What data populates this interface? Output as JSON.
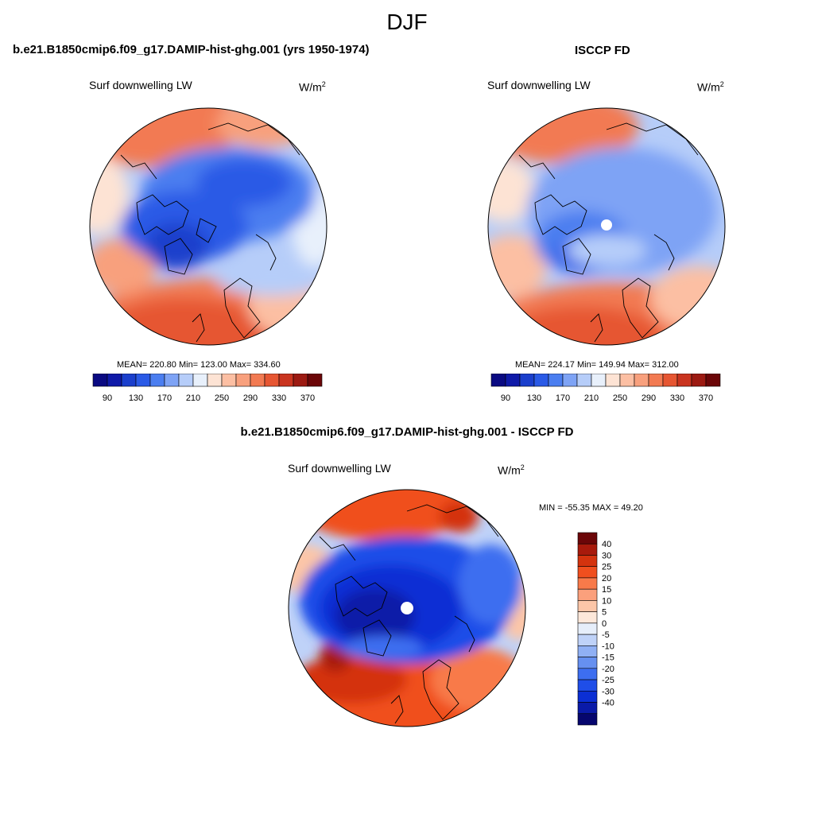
{
  "figure": {
    "title": "DJF"
  },
  "colors": {
    "coast": "#000000",
    "missing": "#ffffff"
  },
  "panels": [
    {
      "id": "model",
      "title": "b.e21.B1850cmip6.f09_g17.DAMIP-hist-ghg.001 (yrs 1950-1974)",
      "variable": "Surf downwelling LW",
      "units_base": "W/m",
      "units_exp": "2",
      "stats": "MEAN= 220.80  Min= 123.00  Max= 334.60",
      "mean": 220.8,
      "min": 123.0,
      "max": 334.6,
      "colorbar": {
        "orientation": "horizontal",
        "colors": [
          "#0a0a82",
          "#0f1aa8",
          "#1b3fcc",
          "#2a5ae6",
          "#4b7ef0",
          "#7ea3f5",
          "#b6cdf9",
          "#e8f0fb",
          "#fde3d4",
          "#fcbfa3",
          "#f8a07d",
          "#f27a52",
          "#e65632",
          "#c9341f",
          "#9c1a12",
          "#6b0608"
        ],
        "tick_labels": [
          "90",
          "130",
          "170",
          "210",
          "250",
          "290",
          "330",
          "370"
        ]
      }
    },
    {
      "id": "obs",
      "title": "ISCCP FD",
      "variable": "Surf downwelling LW",
      "units_base": "W/m",
      "units_exp": "2",
      "stats": "MEAN= 224.17  Min= 149.94  Max= 312.00",
      "mean": 224.17,
      "min": 149.94,
      "max": 312.0,
      "colorbar": {
        "orientation": "horizontal",
        "colors": [
          "#0a0a82",
          "#0f1aa8",
          "#1b3fcc",
          "#2a5ae6",
          "#4b7ef0",
          "#7ea3f5",
          "#b6cdf9",
          "#e8f0fb",
          "#fde3d4",
          "#fcbfa3",
          "#f8a07d",
          "#f27a52",
          "#e65632",
          "#c9341f",
          "#9c1a12",
          "#6b0608"
        ],
        "tick_labels": [
          "90",
          "130",
          "170",
          "210",
          "250",
          "290",
          "330",
          "370"
        ]
      }
    },
    {
      "id": "diff",
      "title": "b.e21.B1850cmip6.f09_g17.DAMIP-hist-ghg.001 - ISCCP FD",
      "variable": "Surf downwelling LW",
      "units_base": "W/m",
      "units_exp": "2",
      "stats": "MIN = -55.35 MAX =  49.20",
      "min": -55.35,
      "max": 49.2,
      "colorbar": {
        "orientation": "vertical",
        "colors": [
          "#6b0608",
          "#a81a0c",
          "#d4330e",
          "#f04f1e",
          "#f87a4a",
          "#fba07c",
          "#fcc6a8",
          "#fde8da",
          "#e6eefa",
          "#bfd2f8",
          "#90b0f4",
          "#6690f0",
          "#3d6ef0",
          "#1f4ee8",
          "#0b2fd4",
          "#0a1aa8",
          "#06066e"
        ],
        "tick_labels": [
          "40",
          "30",
          "25",
          "20",
          "15",
          "10",
          "5",
          "0",
          "-5",
          "-10",
          "-15",
          "-20",
          "-25",
          "-30",
          "-40"
        ]
      }
    }
  ]
}
